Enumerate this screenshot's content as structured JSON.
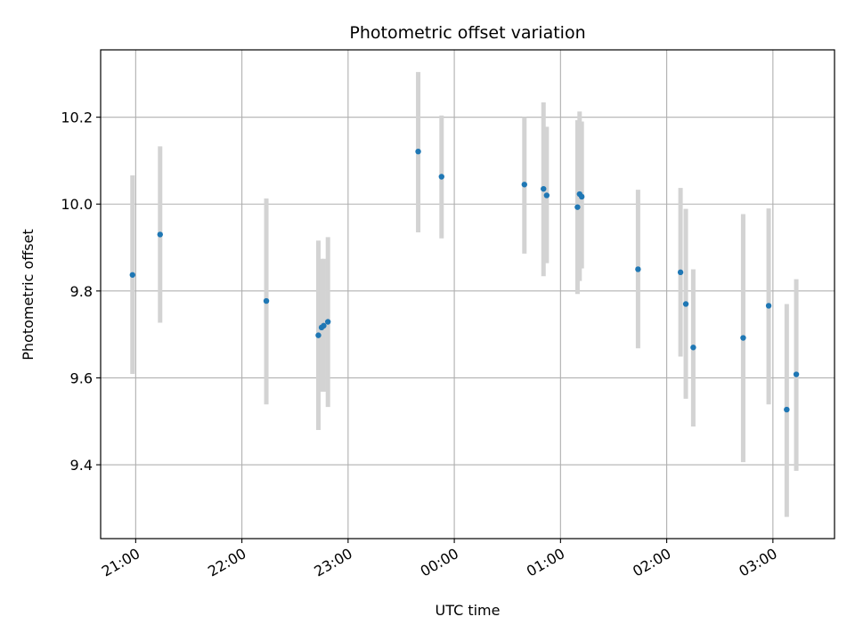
{
  "chart_data": {
    "type": "scatter",
    "title": "Photometric offset variation",
    "xlabel": "UTC time",
    "ylabel": "Photometric offset",
    "x_unit": "UTC time of night (hours, values past 24 fall after midnight)",
    "xlim": [
      20.67,
      27.58
    ],
    "ylim": [
      9.23,
      10.355
    ],
    "x_ticks": [
      {
        "value": 21,
        "label": "21:00"
      },
      {
        "value": 22,
        "label": "22:00"
      },
      {
        "value": 23,
        "label": "23:00"
      },
      {
        "value": 24,
        "label": "00:00"
      },
      {
        "value": 25,
        "label": "01:00"
      },
      {
        "value": 26,
        "label": "02:00"
      },
      {
        "value": 27,
        "label": "03:00"
      }
    ],
    "y_ticks": [
      {
        "value": 9.4,
        "label": "9.4"
      },
      {
        "value": 9.6,
        "label": "9.6"
      },
      {
        "value": 9.8,
        "label": "9.8"
      },
      {
        "value": 10.0,
        "label": "10.0"
      },
      {
        "value": 10.2,
        "label": "10.2"
      }
    ],
    "grid": true,
    "point_color": "#1f77b4",
    "errorbar_color": "#d3d3d3",
    "points": [
      {
        "x": 20.97,
        "y": 9.837,
        "lo": 9.609,
        "hi": 10.066
      },
      {
        "x": 21.23,
        "y": 9.93,
        "lo": 9.727,
        "hi": 10.133
      },
      {
        "x": 22.23,
        "y": 9.777,
        "lo": 9.539,
        "hi": 10.013
      },
      {
        "x": 22.72,
        "y": 9.698,
        "lo": 9.48,
        "hi": 9.916
      },
      {
        "x": 22.75,
        "y": 9.716,
        "lo": 9.568,
        "hi": 9.874
      },
      {
        "x": 22.77,
        "y": 9.72,
        "lo": 9.568,
        "hi": 9.874
      },
      {
        "x": 22.81,
        "y": 9.729,
        "lo": 9.533,
        "hi": 9.924
      },
      {
        "x": 23.66,
        "y": 10.121,
        "lo": 9.935,
        "hi": 10.304
      },
      {
        "x": 23.88,
        "y": 10.063,
        "lo": 9.921,
        "hi": 10.204
      },
      {
        "x": 24.66,
        "y": 10.045,
        "lo": 9.886,
        "hi": 10.2
      },
      {
        "x": 24.84,
        "y": 10.035,
        "lo": 9.834,
        "hi": 10.234
      },
      {
        "x": 24.87,
        "y": 10.02,
        "lo": 9.864,
        "hi": 10.178
      },
      {
        "x": 25.16,
        "y": 9.993,
        "lo": 9.793,
        "hi": 10.193
      },
      {
        "x": 25.18,
        "y": 10.023,
        "lo": 9.823,
        "hi": 10.213
      },
      {
        "x": 25.2,
        "y": 10.017,
        "lo": 9.852,
        "hi": 10.19
      },
      {
        "x": 25.73,
        "y": 9.85,
        "lo": 9.668,
        "hi": 10.033
      },
      {
        "x": 26.13,
        "y": 9.843,
        "lo": 9.649,
        "hi": 10.037
      },
      {
        "x": 26.18,
        "y": 9.77,
        "lo": 9.552,
        "hi": 9.989
      },
      {
        "x": 26.25,
        "y": 9.67,
        "lo": 9.488,
        "hi": 9.85
      },
      {
        "x": 26.72,
        "y": 9.692,
        "lo": 9.406,
        "hi": 9.977
      },
      {
        "x": 26.96,
        "y": 9.766,
        "lo": 9.539,
        "hi": 9.99
      },
      {
        "x": 27.13,
        "y": 9.527,
        "lo": 9.28,
        "hi": 9.77
      },
      {
        "x": 27.22,
        "y": 9.608,
        "lo": 9.386,
        "hi": 9.827
      }
    ]
  }
}
